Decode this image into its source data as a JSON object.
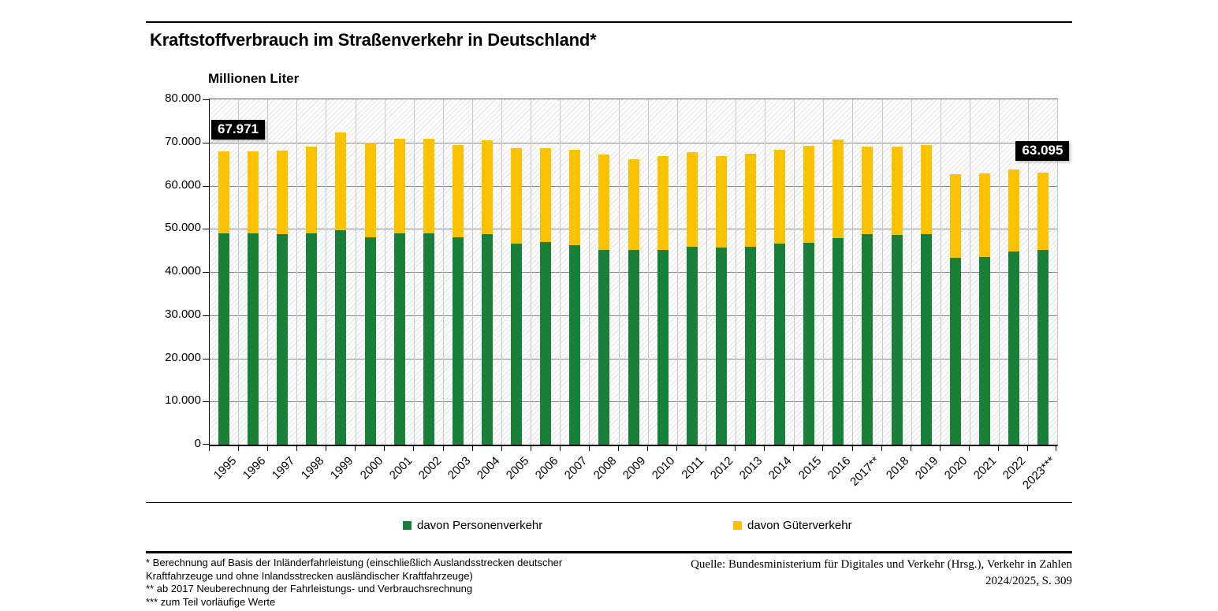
{
  "header": {
    "title": "Kraftstoffverbrauch im Straßenverkehr in Deutschland*"
  },
  "chart_data": {
    "type": "bar",
    "stacked": true,
    "title": "Kraftstoffverbrauch im Straßenverkehr in Deutschland*",
    "unit_label": "Millionen Liter",
    "ylabel": "Millionen Liter",
    "ylim": [
      0,
      80000
    ],
    "ytick_step": 10000,
    "ytick_labels": [
      "0",
      "10.000",
      "20.000",
      "30.000",
      "40.000",
      "50.000",
      "60.000",
      "70.000",
      "80.000"
    ],
    "grid": "horizontal",
    "legend_position": "bottom",
    "background_hatch": true,
    "categories": [
      "1995",
      "1996",
      "1997",
      "1998",
      "1999",
      "2000",
      "2001",
      "2002",
      "2003",
      "2004",
      "2005",
      "2006",
      "2007",
      "2008",
      "2009",
      "2010",
      "2011",
      "2012",
      "2013",
      "2014",
      "2015",
      "2016",
      "2017**",
      "2018",
      "2019",
      "2020",
      "2021",
      "2022",
      "2023***"
    ],
    "series": [
      {
        "name": "davon Personenverkehr",
        "color": "#188038",
        "values": [
          49000,
          48900,
          48800,
          48900,
          49700,
          48100,
          48900,
          49000,
          48000,
          48700,
          46600,
          46900,
          46200,
          45200,
          45200,
          45200,
          45800,
          45600,
          45800,
          46500,
          46800,
          47800,
          48700,
          48600,
          48700,
          43300,
          43500,
          44700,
          45100
        ]
      },
      {
        "name": "davon Güterverkehr",
        "color": "#fcc200",
        "values": [
          18971,
          19000,
          19400,
          20200,
          22700,
          21900,
          22000,
          21800,
          21400,
          21800,
          22100,
          21700,
          22100,
          22100,
          21000,
          21700,
          21900,
          21300,
          21600,
          21800,
          22500,
          22800,
          20300,
          20400,
          20700,
          19300,
          19400,
          19100,
          17995
        ]
      }
    ],
    "totals": [
      67971,
      67900,
      68200,
      69100,
      72400,
      70000,
      70900,
      70800,
      69400,
      70500,
      68700,
      68600,
      68300,
      67300,
      66200,
      66900,
      67700,
      66900,
      67400,
      68300,
      69300,
      70600,
      69000,
      69000,
      69400,
      62600,
      62900,
      63800,
      63095
    ],
    "annotations": [
      {
        "category": "1995",
        "text": "67.971",
        "value": 67971
      },
      {
        "category": "2023***",
        "text": "63.095",
        "value": 63095
      }
    ]
  },
  "legend": {
    "items": [
      {
        "label": "davon Personenverkehr",
        "color": "#188038"
      },
      {
        "label": "davon Güterverkehr",
        "color": "#fcc200"
      }
    ]
  },
  "footnotes": {
    "lines": [
      "* Berechnung auf Basis der Inländerfahrleistung (einschließlich Auslandsstrecken deutscher",
      "Kraftfahrzeuge und ohne Inlandsstrecken ausländischer Kraftfahrzeuge)",
      "** ab 2017 Neuberechnung der Fahrleistungs- und Verbrauchsrechnung",
      "*** zum Teil vorläufige Werte"
    ]
  },
  "source": {
    "lines": [
      "Quelle: Bundesministerium für Digitales und Verkehr (Hrsg.), Verkehr in Zahlen",
      "2024/2025, S. 309"
    ]
  }
}
